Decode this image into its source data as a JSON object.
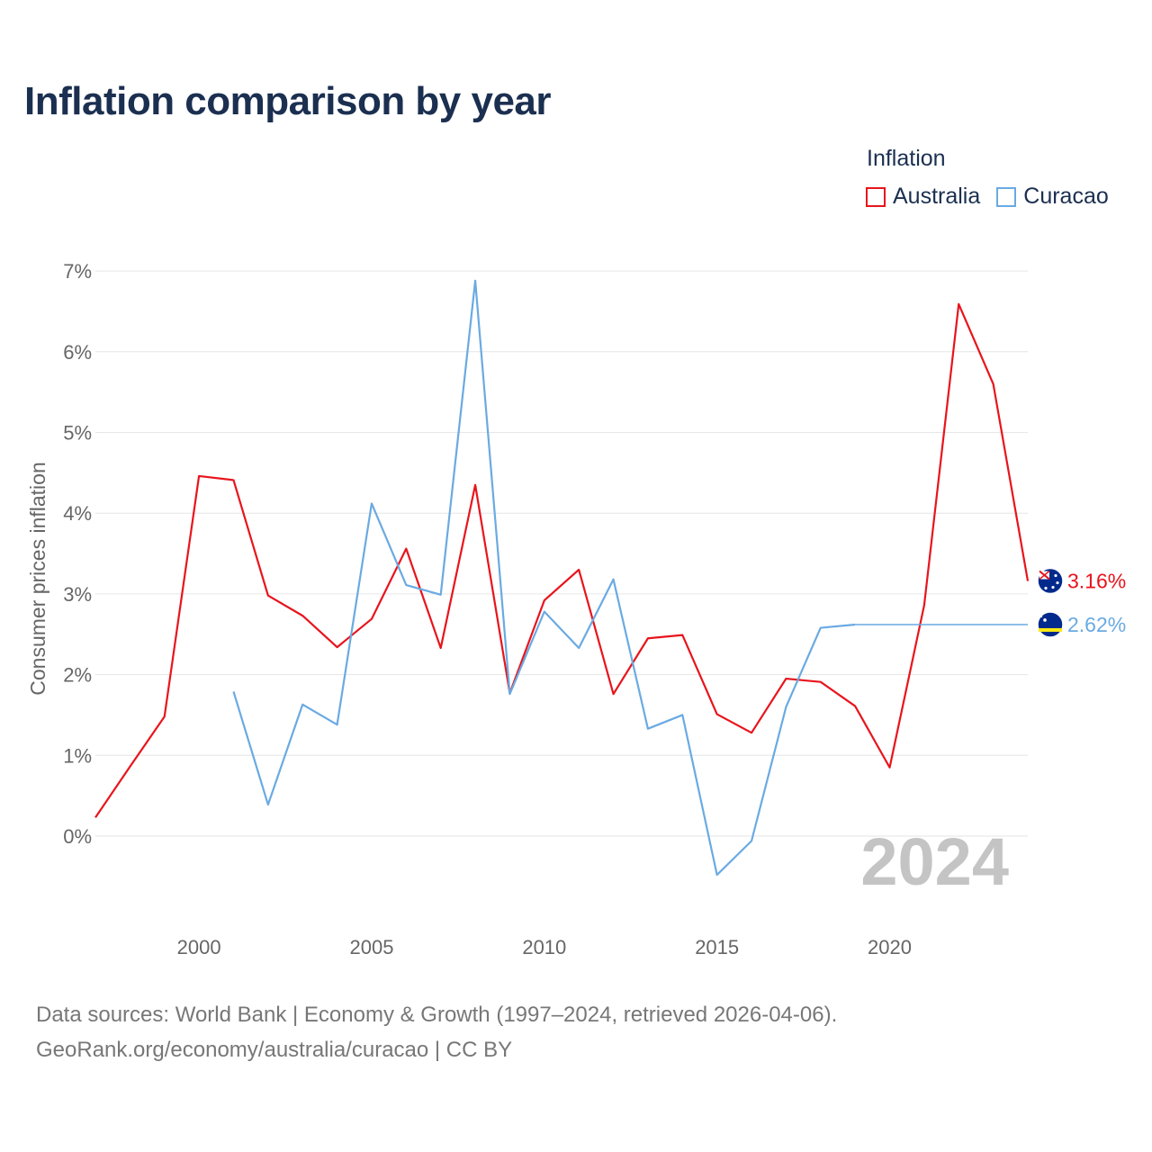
{
  "chart_data": {
    "type": "line",
    "title": "Inflation comparison by year",
    "legend_title": "Inflation",
    "ylabel": "Consumer prices inflation",
    "xlabel": "",
    "xlim": [
      1997,
      2024
    ],
    "ylim": [
      -1.0,
      7.0
    ],
    "x_ticks": [
      2000,
      2005,
      2010,
      2015,
      2020
    ],
    "x_tick_labels": [
      "2000",
      "2005",
      "2010",
      "2015",
      "2020"
    ],
    "y_ticks": [
      0,
      1,
      2,
      3,
      4,
      5,
      6,
      7
    ],
    "y_tick_labels": [
      "0%",
      "1%",
      "2%",
      "3%",
      "4%",
      "5%",
      "6%",
      "7%"
    ],
    "current_year": "2024",
    "legend_position": "top-right",
    "series": [
      {
        "name": "Australia",
        "color": "#e8141c",
        "end_label": "3.16%",
        "end_value": 3.16,
        "flag_icon": "australia-flag-icon",
        "points": [
          [
            1997,
            0.23
          ],
          [
            1998,
            0.86
          ],
          [
            1999,
            1.48
          ],
          [
            2000,
            4.46
          ],
          [
            2001,
            4.41
          ],
          [
            2002,
            2.98
          ],
          [
            2003,
            2.73
          ],
          [
            2004,
            2.34
          ],
          [
            2005,
            2.69
          ],
          [
            2006,
            3.56
          ],
          [
            2007,
            2.33
          ],
          [
            2008,
            4.35
          ],
          [
            2009,
            1.77
          ],
          [
            2010,
            2.92
          ],
          [
            2011,
            3.3
          ],
          [
            2012,
            1.76
          ],
          [
            2013,
            2.45
          ],
          [
            2014,
            2.49
          ],
          [
            2015,
            1.51
          ],
          [
            2016,
            1.28
          ],
          [
            2017,
            1.95
          ],
          [
            2018,
            1.91
          ],
          [
            2019,
            1.61
          ],
          [
            2020,
            0.85
          ],
          [
            2021,
            2.86
          ],
          [
            2022,
            6.59
          ],
          [
            2023,
            5.6
          ],
          [
            2024,
            3.16
          ]
        ]
      },
      {
        "name": "Curacao",
        "color": "#6aaae2",
        "end_label": "2.62%",
        "end_value": 2.62,
        "flag_icon": "curacao-flag-icon",
        "points": [
          [
            2001,
            1.79
          ],
          [
            2002,
            0.39
          ],
          [
            2003,
            1.63
          ],
          [
            2004,
            1.38
          ],
          [
            2005,
            4.12
          ],
          [
            2006,
            3.11
          ],
          [
            2007,
            2.99
          ],
          [
            2008,
            6.88
          ],
          [
            2009,
            1.76
          ],
          [
            2010,
            2.78
          ],
          [
            2011,
            2.33
          ],
          [
            2012,
            3.18
          ],
          [
            2013,
            1.33
          ],
          [
            2014,
            1.5
          ],
          [
            2015,
            -0.48
          ],
          [
            2016,
            -0.06
          ],
          [
            2017,
            1.6
          ],
          [
            2018,
            2.58
          ],
          [
            2019,
            2.62
          ]
        ],
        "extended_to": 2024
      }
    ]
  },
  "source": {
    "line1": "Data sources: World Bank | Economy & Growth (1997–2024, retrieved 2026-04-06).",
    "line2": "GeoRank.org/economy/australia/curacao | CC BY"
  }
}
